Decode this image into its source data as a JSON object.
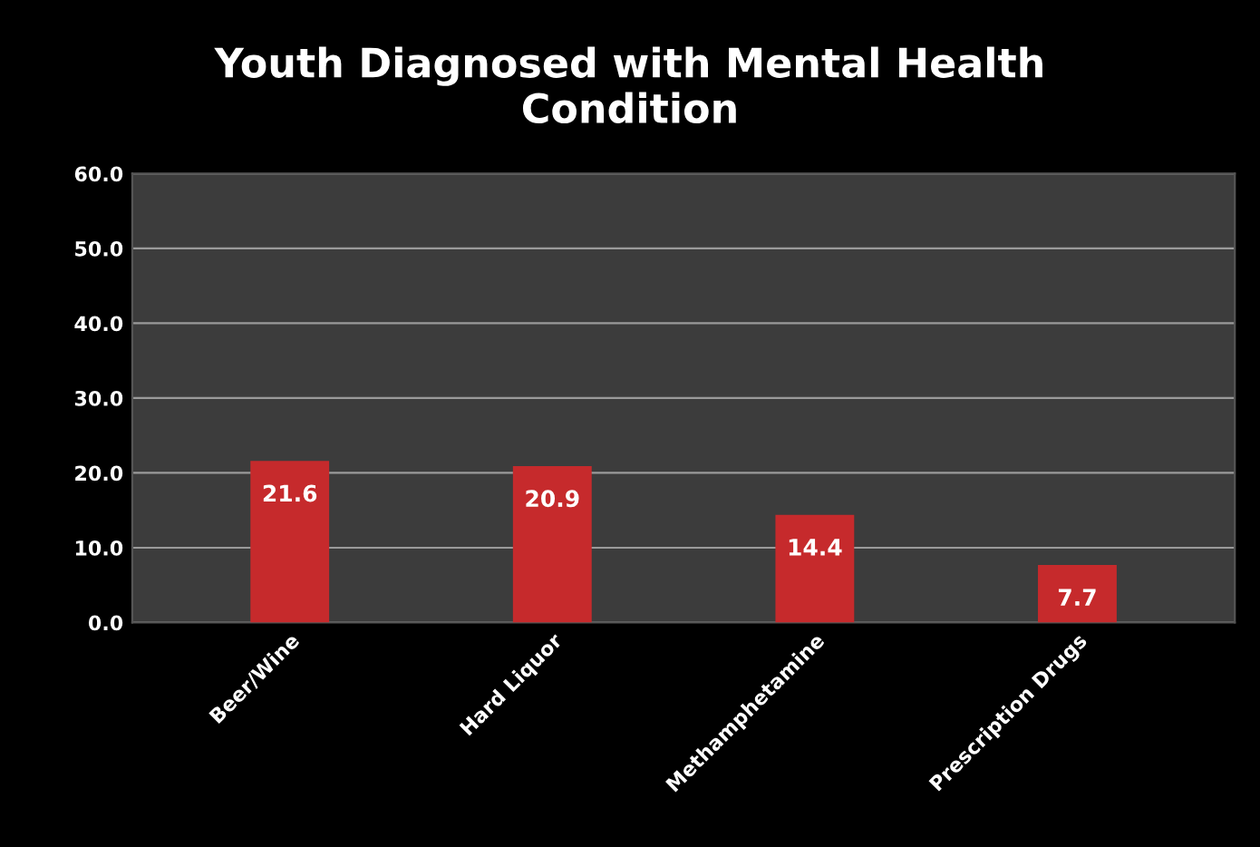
{
  "chart_data": {
    "type": "bar",
    "title": "Youth Diagnosed with Mental Health\nCondition",
    "categories": [
      "Beer/Wine",
      "Hard Liquor",
      "Methamphetamine",
      "Prescription Drugs"
    ],
    "values": [
      21.6,
      20.9,
      14.4,
      7.7
    ],
    "color": "#c62a2c",
    "ylim": [
      0,
      60
    ],
    "yticks": [
      {
        "value": 0,
        "label": "0.0"
      },
      {
        "value": 10,
        "label": "10.0"
      },
      {
        "value": 20,
        "label": "20.0"
      },
      {
        "value": 30,
        "label": "30.0"
      },
      {
        "value": 40,
        "label": "40.0"
      },
      {
        "value": 50,
        "label": "50.0"
      },
      {
        "value": 60,
        "label": "60.0"
      }
    ],
    "grid": "y",
    "data_labels": true,
    "legend": false
  }
}
